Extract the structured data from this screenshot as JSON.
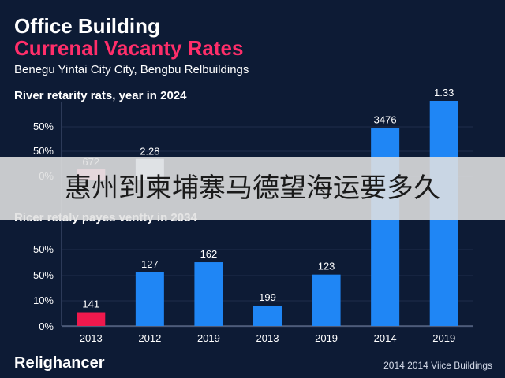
{
  "header": {
    "title_line1": "Office Building",
    "title_line2": "Currenal Vacanty Rates",
    "subtitle": "Benegu Yintai City City, Bengbu Relbuildings"
  },
  "section1_label": "River retarity rats, year in 2024",
  "section2_label": "Ricer retaly payes ventty in 2034",
  "overlay_text": "惠州到柬埔寨马德望海运要多久",
  "footer": {
    "brand": "Relighancer",
    "note": "2014 2014 Viice Buildings"
  },
  "colors": {
    "background": "#0d1b35",
    "accent": "#ff2e6a",
    "bar_blue": "#1f86f5",
    "bar_red": "#f0194d",
    "bar_pale": "#cfe3ff"
  },
  "chart_data": {
    "type": "bar",
    "categories": [
      "2013",
      "2012",
      "2019",
      "2013",
      "2019",
      "2014",
      "2019"
    ],
    "y_tick_labels_upper": [
      "50%",
      "50%",
      "0%"
    ],
    "y_tick_labels_lower": [
      "50%",
      "50%",
      "10%",
      "0%"
    ],
    "bars": [
      {
        "category": "2013",
        "label": "141",
        "height_fraction": 0.19,
        "upper_label": "672",
        "upper_height_fraction": 0.33,
        "color": "red"
      },
      {
        "category": "2012",
        "label": "127",
        "height_fraction": 0.74,
        "upper_label": "2.28",
        "upper_height_fraction": 0.67,
        "color": "blue"
      },
      {
        "category": "2019",
        "label": "162",
        "height_fraction": 0.88,
        "color": "blue"
      },
      {
        "category": "2013",
        "label": "199",
        "height_fraction": 0.28,
        "color": "blue"
      },
      {
        "category": "2019",
        "label": "123",
        "height_fraction": 0.71,
        "color": "blue"
      },
      {
        "category": "2014",
        "label": "3476",
        "height_fraction": 0.88,
        "color": "blue",
        "tall": true
      },
      {
        "category": "2019",
        "label": "1.33",
        "height_fraction": 1.0,
        "color": "blue",
        "tall": true
      }
    ]
  }
}
